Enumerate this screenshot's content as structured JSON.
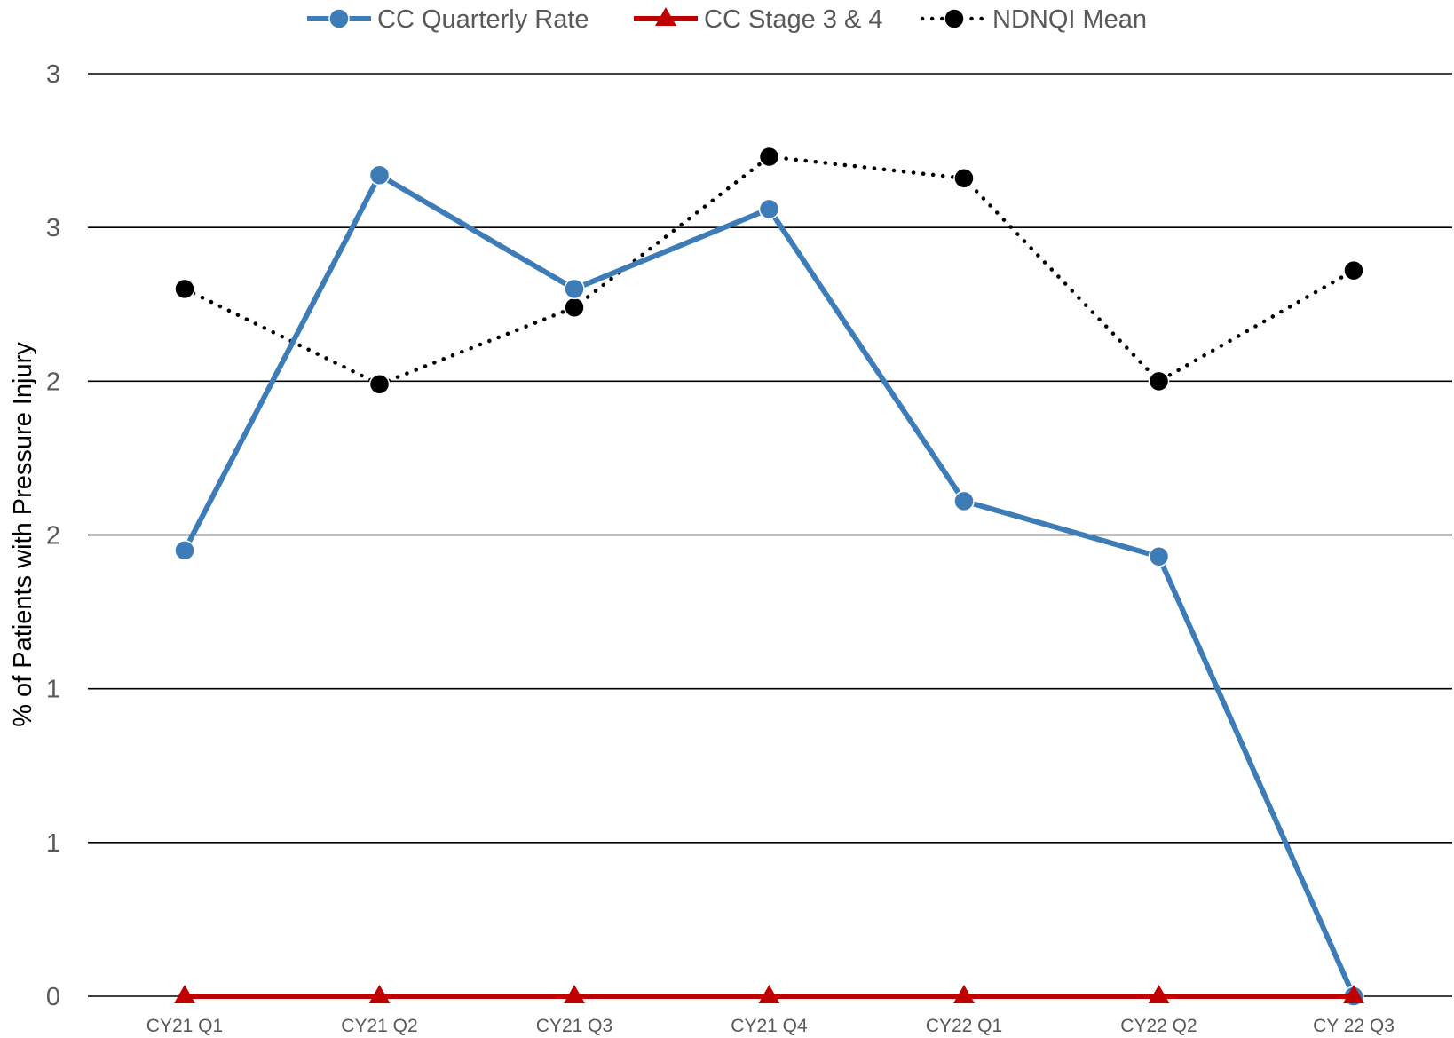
{
  "chart_data": {
    "type": "line",
    "title": "",
    "xlabel": "",
    "ylabel": "% of Patients with Pressure Injury",
    "categories": [
      "CY21 Q1",
      "CY21 Q2",
      "CY21 Q3",
      "CY21 Q4",
      "CY22 Q1",
      "CY22 Q2",
      "CY 22 Q3"
    ],
    "ylim": [
      0,
      3
    ],
    "y_ticks": [
      0,
      0.5,
      1,
      1.5,
      2,
      2.5,
      3
    ],
    "y_tick_labels": [
      "0",
      "1",
      "1",
      "2",
      "2",
      "3",
      "3"
    ],
    "grid": true,
    "legend_position": "top",
    "series": [
      {
        "name": "CC Quarterly Rate",
        "color": "#3E7CB8",
        "style": "solid",
        "marker": "circle",
        "values": [
          1.45,
          2.67,
          2.3,
          2.56,
          1.61,
          1.43,
          0.0
        ]
      },
      {
        "name": "CC Stage 3 & 4",
        "color": "#C00000",
        "style": "solid",
        "marker": "triangle",
        "values": [
          0,
          0,
          0,
          0,
          0,
          0,
          0
        ]
      },
      {
        "name": "NDNQI Mean",
        "color": "#000000",
        "style": "dotted",
        "marker": "circle",
        "values": [
          2.3,
          1.99,
          2.24,
          2.73,
          2.66,
          2.0,
          2.36
        ]
      }
    ]
  }
}
